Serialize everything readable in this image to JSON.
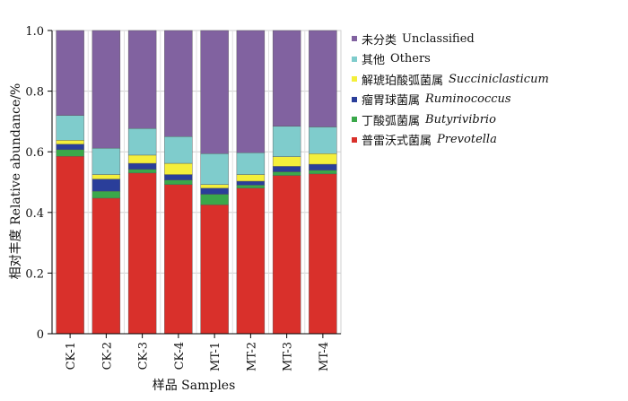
{
  "chart_data": {
    "type": "bar",
    "stacked": true,
    "categories": [
      "CK-1",
      "CK-2",
      "CK-3",
      "CK-4",
      "MT-1",
      "MT-2",
      "MT-3",
      "MT-4"
    ],
    "xlabel": "样品 Samples",
    "ylabel": "相对丰度 Relative abundance/%",
    "ylim": [
      0,
      1.0
    ],
    "yticks": [
      "0",
      "0.2",
      "0.4",
      "0.6",
      "0.8",
      "1.0"
    ],
    "grid": true,
    "legend_position": "right",
    "series": [
      {
        "name": "普雷沃式菌属",
        "name_latin": "Prevotella",
        "color": "#d9302b",
        "values": [
          0.585,
          0.447,
          0.53,
          0.492,
          0.425,
          0.48,
          0.522,
          0.527
        ]
      },
      {
        "name": "丁酸弧菌属",
        "name_latin": "Butyrivibrio",
        "color": "#3aa84a",
        "values": [
          0.022,
          0.023,
          0.012,
          0.015,
          0.035,
          0.01,
          0.012,
          0.012
        ]
      },
      {
        "name": "瘤胃球菌属",
        "name_latin": "Ruminococcus",
        "color": "#2a3e9a",
        "values": [
          0.018,
          0.04,
          0.02,
          0.018,
          0.02,
          0.013,
          0.018,
          0.02
        ]
      },
      {
        "name": "解琥珀酸弧菌属",
        "name_latin": "Succiniclasticum",
        "color": "#f4ef3b",
        "values": [
          0.013,
          0.015,
          0.027,
          0.037,
          0.012,
          0.022,
          0.032,
          0.035
        ]
      },
      {
        "name": "其他",
        "name_latin": "Others",
        "color": "#7fcccc",
        "values": [
          0.082,
          0.087,
          0.088,
          0.088,
          0.102,
          0.072,
          0.1,
          0.088
        ]
      },
      {
        "name": "未分类",
        "name_latin": "Unclassified",
        "color": "#8162a0",
        "values": [
          0.28,
          0.388,
          0.323,
          0.35,
          0.406,
          0.403,
          0.316,
          0.318
        ]
      }
    ],
    "legend": [
      {
        "cn": "未分类",
        "latin": "Unclassified",
        "italic": false,
        "color": "#8162a0"
      },
      {
        "cn": "其他",
        "latin": "Others",
        "italic": false,
        "color": "#7fcccc"
      },
      {
        "cn": "解琥珀酸弧菌属",
        "latin": "Succiniclasticum",
        "italic": true,
        "color": "#f4ef3b"
      },
      {
        "cn": "瘤胃球菌属",
        "latin": "Ruminococcus",
        "italic": true,
        "color": "#2a3e9a"
      },
      {
        "cn": "丁酸弧菌属",
        "latin": "Butyrivibrio",
        "italic": true,
        "color": "#3aa84a"
      },
      {
        "cn": "普雷沃式菌属",
        "latin": "Prevotella",
        "italic": true,
        "color": "#d9302b"
      }
    ]
  }
}
